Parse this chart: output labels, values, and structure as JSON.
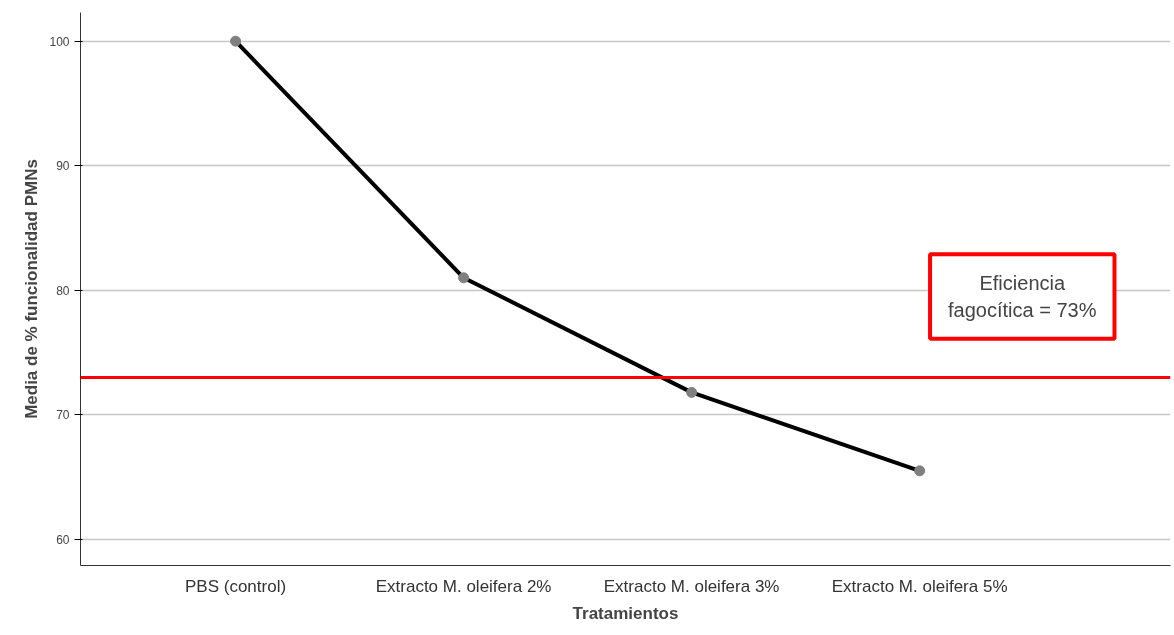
{
  "chart_data": {
    "type": "line",
    "xlabel": "Tratamientos",
    "ylabel": "Media de % funcionalidad PMNs",
    "categories": [
      "PBS (control)",
      "Extracto M. oleifera 2%",
      "Extracto M. oleifera 3%",
      "Extracto M. oleifera 5%"
    ],
    "series": [
      {
        "color": "#000000",
        "values": [
          100,
          81,
          71.8,
          65.5
        ]
      }
    ],
    "ylim": [
      57.9,
      102.3
    ],
    "yticks": [
      60,
      70,
      80,
      90,
      100
    ],
    "grid": "y",
    "marker": "circle",
    "line_style": "solid",
    "ref_lines": [
      {
        "axis": "y",
        "value": 73,
        "label": "Eficiencia fagocítica = 73%",
        "color": "#ff0000"
      }
    ]
  }
}
